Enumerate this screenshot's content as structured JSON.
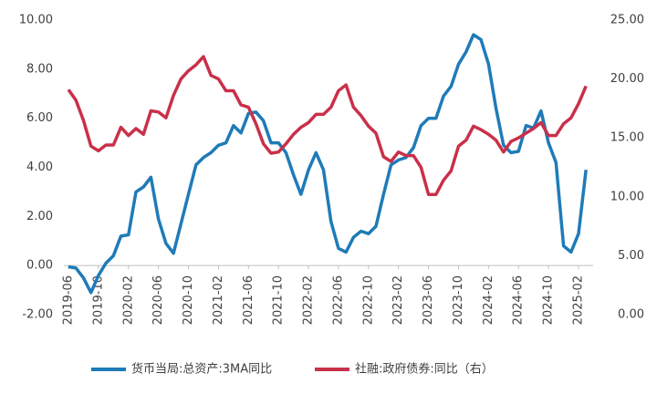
{
  "chart_data": {
    "type": "line",
    "categories": [
      "2019-06",
      null,
      null,
      null,
      "2019-10",
      null,
      null,
      null,
      "2020-02",
      null,
      null,
      null,
      "2020-06",
      null,
      null,
      null,
      "2020-10",
      null,
      null,
      null,
      "2021-02",
      null,
      null,
      null,
      "2021-06",
      null,
      null,
      null,
      "2021-10",
      null,
      null,
      null,
      "2022-02",
      null,
      null,
      null,
      "2022-06",
      null,
      null,
      null,
      "2022-10",
      null,
      null,
      null,
      "2023-02",
      null,
      null,
      null,
      "2023-06",
      null,
      null,
      null,
      "2023-10",
      null,
      null,
      null,
      "2024-02",
      null,
      null,
      null,
      "2024-06",
      null,
      null,
      null,
      "2024-10",
      null,
      null,
      null,
      "2025-02",
      null
    ],
    "series": [
      {
        "name": "货币当局:总资产:3MA同比",
        "color": "#1f7bb8",
        "values": [
          -0.05,
          -0.1,
          -0.5,
          -1.1,
          -0.4,
          0.1,
          0.4,
          1.2,
          1.25,
          3.0,
          3.2,
          3.6,
          1.9,
          0.9,
          0.5,
          1.7,
          2.9,
          4.1,
          4.4,
          4.6,
          4.9,
          5.0,
          5.7,
          5.4,
          6.2,
          6.25,
          5.9,
          5.0,
          5.0,
          4.6,
          3.7,
          2.9,
          3.9,
          4.6,
          3.9,
          1.8,
          0.7,
          0.55,
          1.15,
          1.4,
          1.3,
          1.6,
          2.9,
          4.1,
          4.3,
          4.4,
          4.8,
          5.7,
          6.0,
          6.0,
          6.9,
          7.3,
          8.2,
          8.7,
          9.4,
          9.2,
          8.2,
          6.4,
          4.9,
          4.6,
          4.65,
          5.7,
          5.6,
          6.3,
          5.0,
          4.2,
          0.8,
          0.55,
          1.3,
          3.9
        ]
      },
      {
        "name": "社融:政府债券:同比（右）",
        "color": "#c9304a",
        "axis": "y2",
        "values": [
          19.1,
          18.2,
          16.5,
          14.3,
          13.9,
          14.4,
          14.4,
          15.9,
          15.2,
          15.8,
          15.3,
          17.3,
          17.2,
          16.7,
          18.6,
          20.0,
          20.7,
          21.2,
          21.9,
          20.3,
          20.0,
          19.0,
          19.0,
          17.8,
          17.6,
          16.2,
          14.5,
          13.7,
          13.8,
          14.5,
          15.3,
          15.9,
          16.3,
          17.0,
          17.0,
          17.6,
          19.0,
          19.5,
          17.6,
          16.9,
          16.0,
          15.4,
          13.4,
          13.0,
          13.8,
          13.5,
          13.5,
          12.5,
          10.2,
          10.2,
          11.4,
          12.2,
          14.3,
          14.8,
          16.0,
          15.7,
          15.3,
          14.8,
          13.8,
          14.7,
          15.0,
          15.4,
          15.8,
          16.3,
          15.2,
          15.2,
          16.2,
          16.7,
          17.9,
          19.4
        ]
      }
    ],
    "ylim": [
      -2,
      10
    ],
    "yticks": [
      {
        "value": -2,
        "label": "-2.00"
      },
      {
        "value": 0,
        "label": "0.00"
      },
      {
        "value": 2,
        "label": "2.00"
      },
      {
        "value": 4,
        "label": "4.00"
      },
      {
        "value": 6,
        "label": "6.00"
      },
      {
        "value": 8,
        "label": "8.00"
      },
      {
        "value": 10,
        "label": "10.00"
      }
    ],
    "y2lim": [
      0,
      25
    ],
    "y2ticks": [
      {
        "value": 0,
        "label": "0.00"
      },
      {
        "value": 5,
        "label": "5.00"
      },
      {
        "value": 10,
        "label": "10.00"
      },
      {
        "value": 15,
        "label": "15.00"
      },
      {
        "value": 20,
        "label": "20.00"
      },
      {
        "value": 25,
        "label": "25.00"
      }
    ],
    "grid": false,
    "legend": "bottom"
  }
}
